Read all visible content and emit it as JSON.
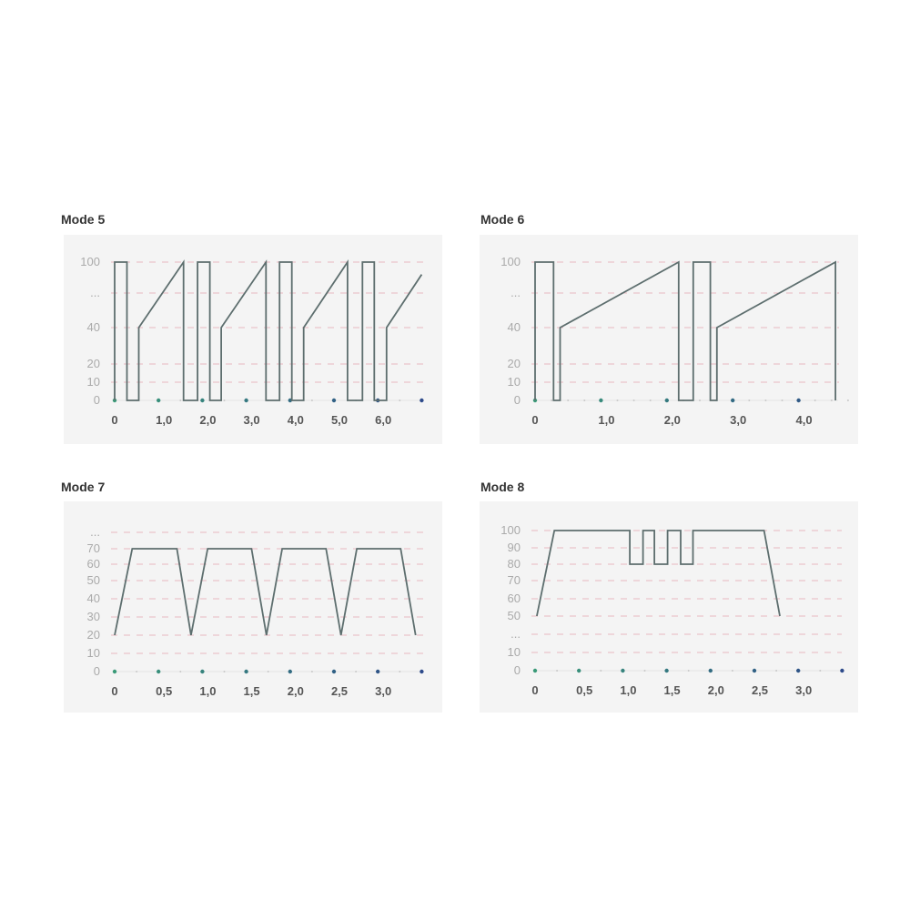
{
  "chart_data": [
    {
      "type": "line",
      "title": "Mode 5",
      "y_tick_labels": [
        "0",
        "10",
        "20",
        "40",
        "...",
        "100"
      ],
      "x_tick_labels": [
        {
          "value": 0,
          "label": "0"
        },
        {
          "value": 1,
          "label": "1,0"
        },
        {
          "value": 2,
          "label": "2,0"
        },
        {
          "value": 3,
          "label": "3,0"
        },
        {
          "value": 4,
          "label": "4,0"
        },
        {
          "value": 5,
          "label": "5,0"
        },
        {
          "value": 6,
          "label": "6,0"
        }
      ],
      "xlim": [
        0,
        7
      ],
      "grid": true,
      "series": [
        {
          "x": [
            0,
            0,
            0.28,
            0.28,
            0.55,
            0.55,
            1.57,
            1.57,
            1.89,
            1.89,
            2.17,
            2.17,
            2.43,
            2.43,
            3.45,
            3.45,
            3.76,
            3.76,
            4.04,
            4.04,
            4.31,
            4.31,
            5.31,
            5.31,
            5.65,
            5.65,
            5.92,
            5.92,
            6.2,
            6.2,
            7.0
          ],
          "y": [
            0,
            100,
            100,
            0,
            0,
            40,
            100,
            0,
            0,
            100,
            100,
            0,
            0,
            40,
            100,
            0,
            0,
            100,
            100,
            0,
            0,
            40,
            100,
            0,
            0,
            100,
            100,
            0,
            0,
            40,
            88
          ]
        }
      ]
    },
    {
      "type": "line",
      "title": "Mode 6",
      "y_tick_labels": [
        "0",
        "10",
        "20",
        "40",
        "...",
        "100"
      ],
      "x_tick_labels": [
        {
          "value": 0,
          "label": "0"
        },
        {
          "value": 1,
          "label": "1,0"
        },
        {
          "value": 2,
          "label": "2,0"
        },
        {
          "value": 3,
          "label": "3,0"
        },
        {
          "value": 4,
          "label": "4,0"
        }
      ],
      "xlim": [
        0,
        4.6
      ],
      "grid": true,
      "series": [
        {
          "x": [
            0,
            0,
            0.28,
            0.28,
            0.38,
            0.38,
            2.18,
            2.18,
            2.4,
            2.4,
            2.66,
            2.66,
            2.76,
            2.76,
            4.56,
            4.56
          ],
          "y": [
            0,
            100,
            100,
            0,
            0,
            40,
            100,
            0,
            0,
            100,
            100,
            0,
            0,
            40,
            100,
            0
          ]
        }
      ]
    },
    {
      "type": "line",
      "title": "Mode 7",
      "y_tick_labels": [
        "0",
        "10",
        "20",
        "30",
        "40",
        "50",
        "60",
        "70",
        "..."
      ],
      "x_tick_labels": [
        {
          "value": 0,
          "label": "0"
        },
        {
          "value": 0.5,
          "label": "0,5"
        },
        {
          "value": 1,
          "label": "1,0"
        },
        {
          "value": 1.5,
          "label": "1,5"
        },
        {
          "value": 2,
          "label": "2,0"
        },
        {
          "value": 2.5,
          "label": "2,5"
        },
        {
          "value": 3,
          "label": "3,0"
        }
      ],
      "xlim": [
        0,
        3.5
      ],
      "grid": true,
      "series": [
        {
          "x": [
            0,
            0.2,
            0.71,
            0.87,
            1.06,
            1.56,
            1.73,
            1.91,
            2.41,
            2.58,
            2.76,
            3.26,
            3.43
          ],
          "y": [
            20,
            70,
            70,
            20,
            70,
            70,
            20,
            70,
            70,
            20,
            70,
            70,
            20
          ]
        }
      ]
    },
    {
      "type": "line",
      "title": "Mode 8",
      "y_tick_labels": [
        "0",
        "10",
        "...",
        "50",
        "60",
        "70",
        "80",
        "90",
        "100"
      ],
      "x_tick_labels": [
        {
          "value": 0,
          "label": "0"
        },
        {
          "value": 0.5,
          "label": "0,5"
        },
        {
          "value": 1,
          "label": "1,0"
        },
        {
          "value": 1.5,
          "label": "1,5"
        },
        {
          "value": 2,
          "label": "2,0"
        },
        {
          "value": 2.5,
          "label": "2,5"
        },
        {
          "value": 3,
          "label": "3,0"
        }
      ],
      "xlim": [
        0,
        3.5
      ],
      "grid": true,
      "series": [
        {
          "x": [
            0.02,
            0.22,
            1.08,
            1.08,
            1.23,
            1.23,
            1.36,
            1.36,
            1.51,
            1.51,
            1.66,
            1.66,
            1.8,
            1.8,
            2.61,
            2.79
          ],
          "y": [
            50,
            100,
            100,
            80,
            80,
            100,
            100,
            80,
            80,
            100,
            100,
            80,
            80,
            100,
            100,
            50
          ]
        }
      ]
    }
  ],
  "colors": {
    "line": "#5d6e6e",
    "grid": "#e8b9c0",
    "panel": "#f4f4f4",
    "dot_start": "#3a9a78",
    "dot_end": "#2d4a8a",
    "minor_dot": "#c8c8c8"
  }
}
